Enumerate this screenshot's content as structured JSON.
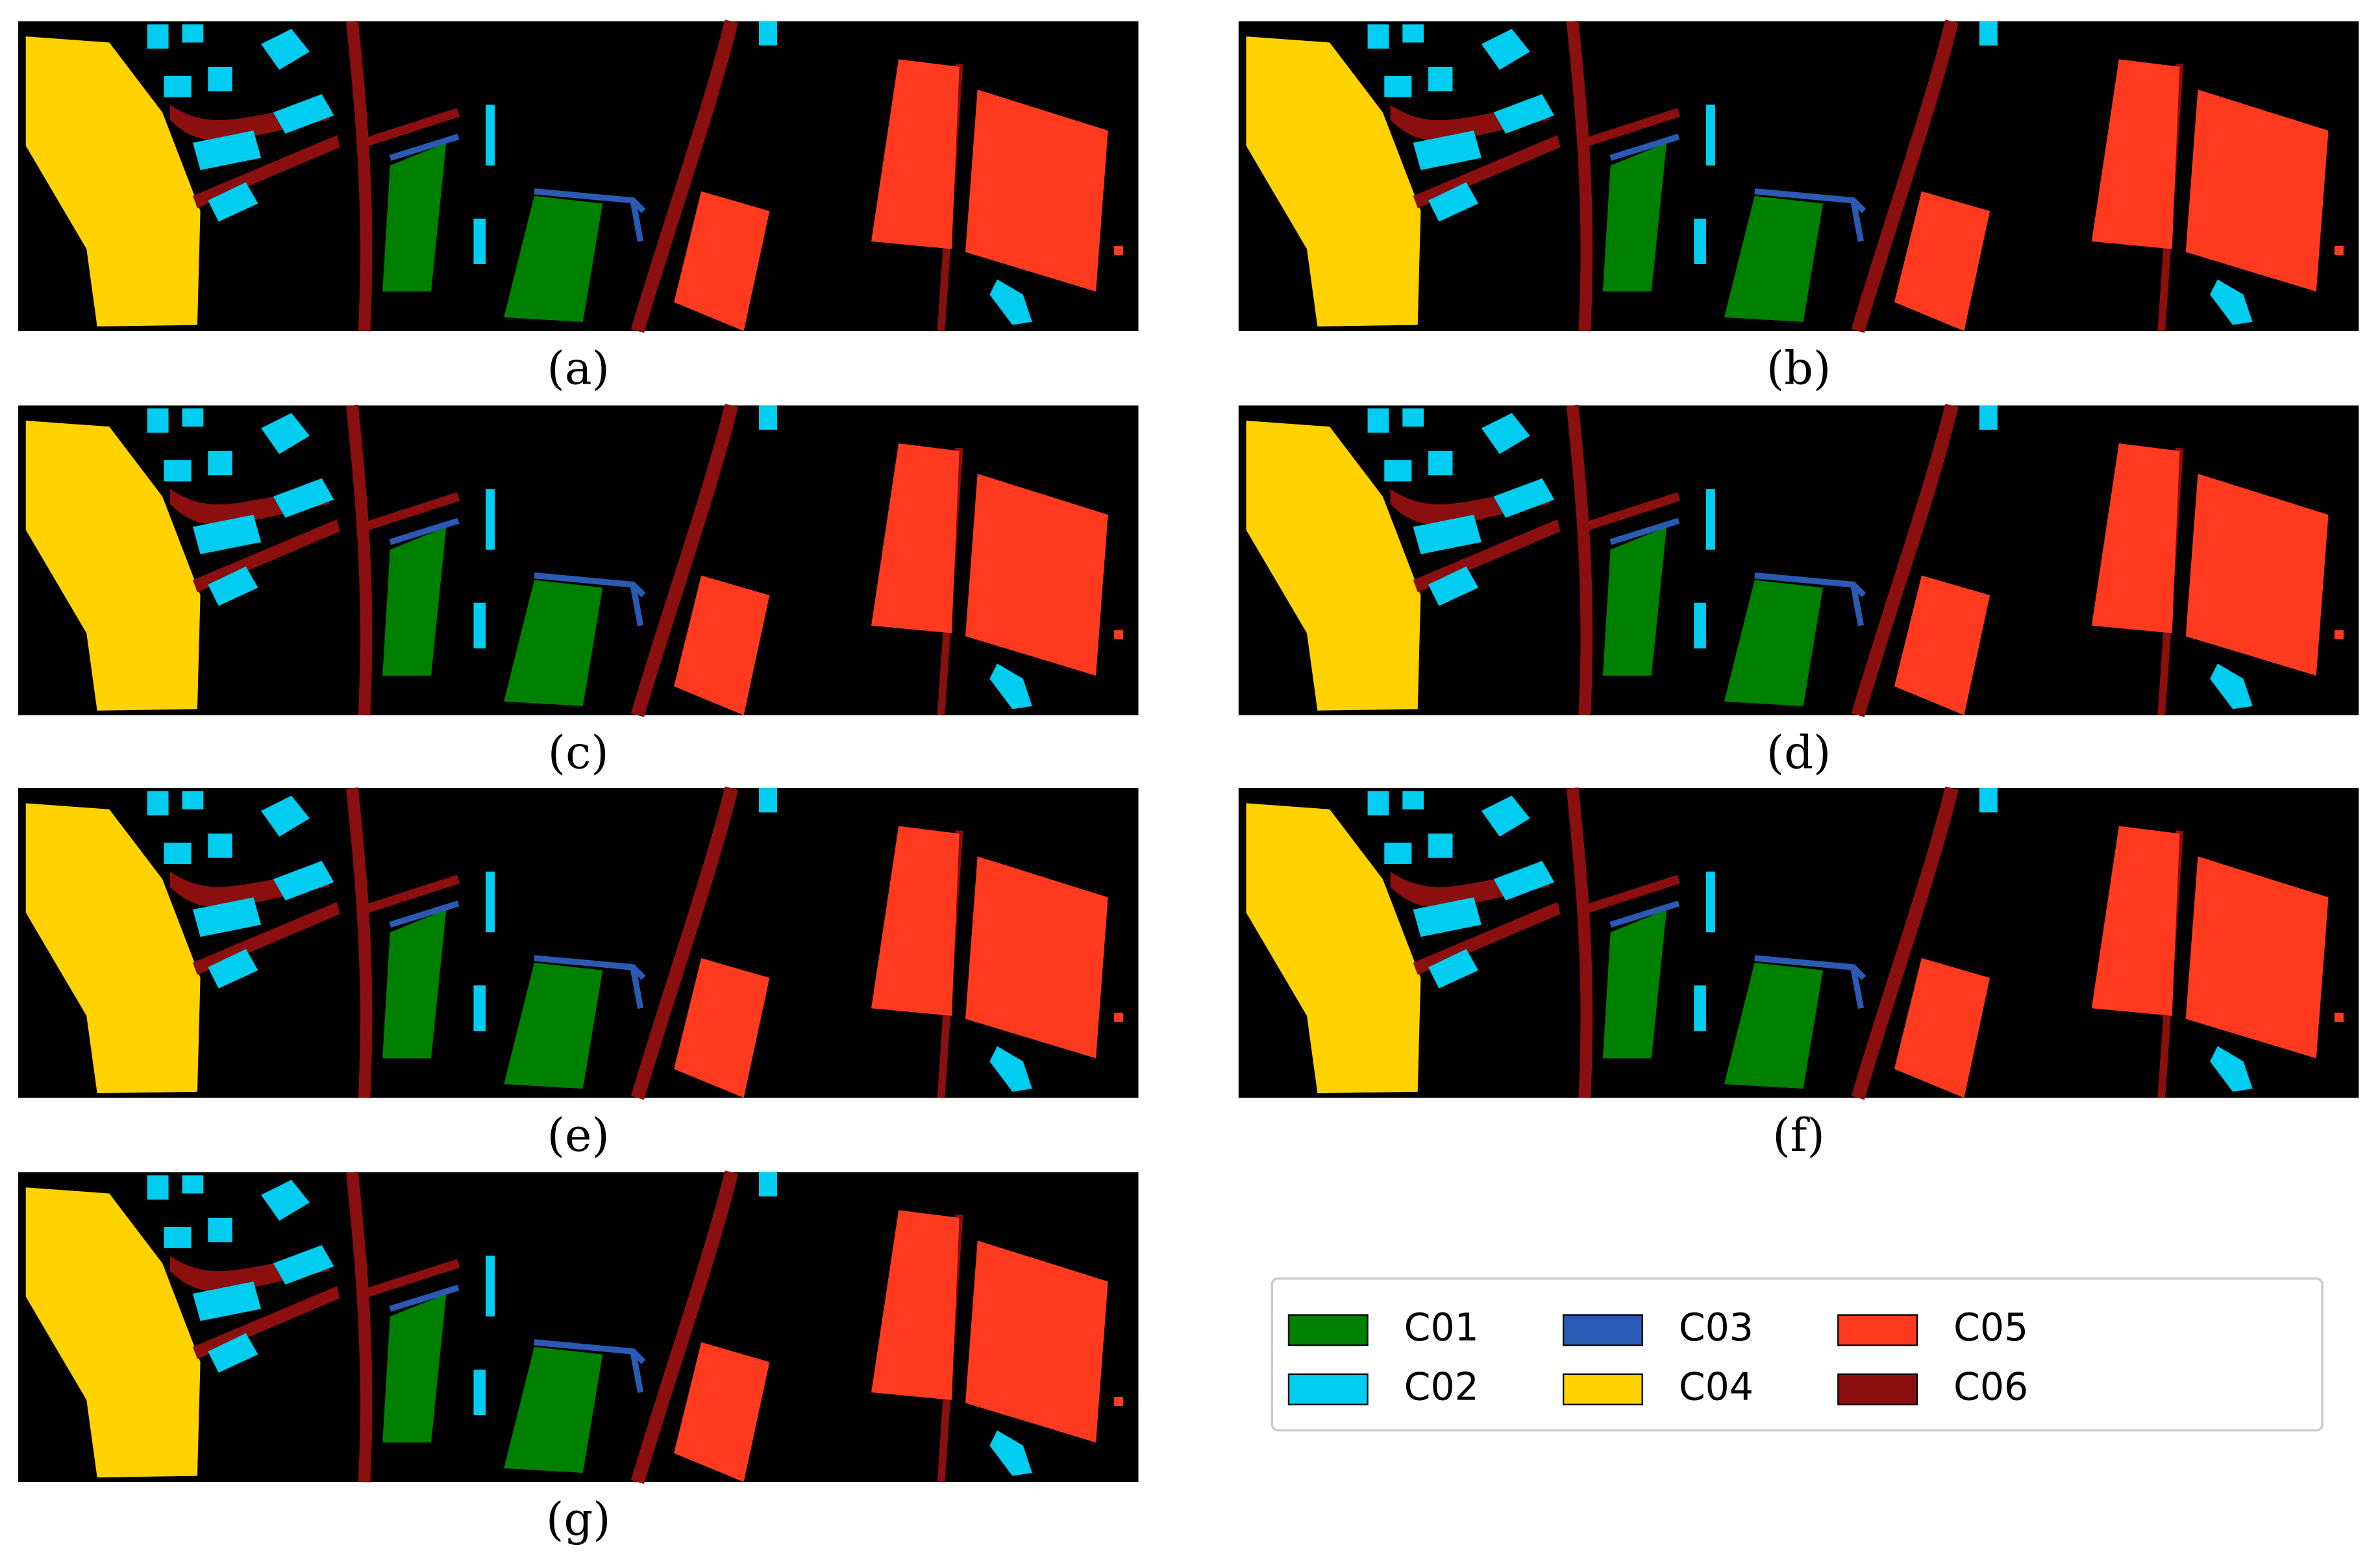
{
  "panels": [
    {
      "label": "(a)"
    },
    {
      "label": "(b)"
    },
    {
      "label": "(c)"
    },
    {
      "label": "(d)"
    },
    {
      "label": "(e)"
    },
    {
      "label": "(f)"
    },
    {
      "label": "(g)"
    }
  ],
  "legend": [
    {
      "name": "C01",
      "color": "#008000"
    },
    {
      "name": "C02",
      "color": "#00cdf0"
    },
    {
      "name": "C03",
      "color": "#2a5ab4"
    },
    {
      "name": "C04",
      "color": "#ffd200"
    },
    {
      "name": "C05",
      "color": "#ff3a1e"
    },
    {
      "name": "C06",
      "color": "#8b0f0f"
    }
  ]
}
